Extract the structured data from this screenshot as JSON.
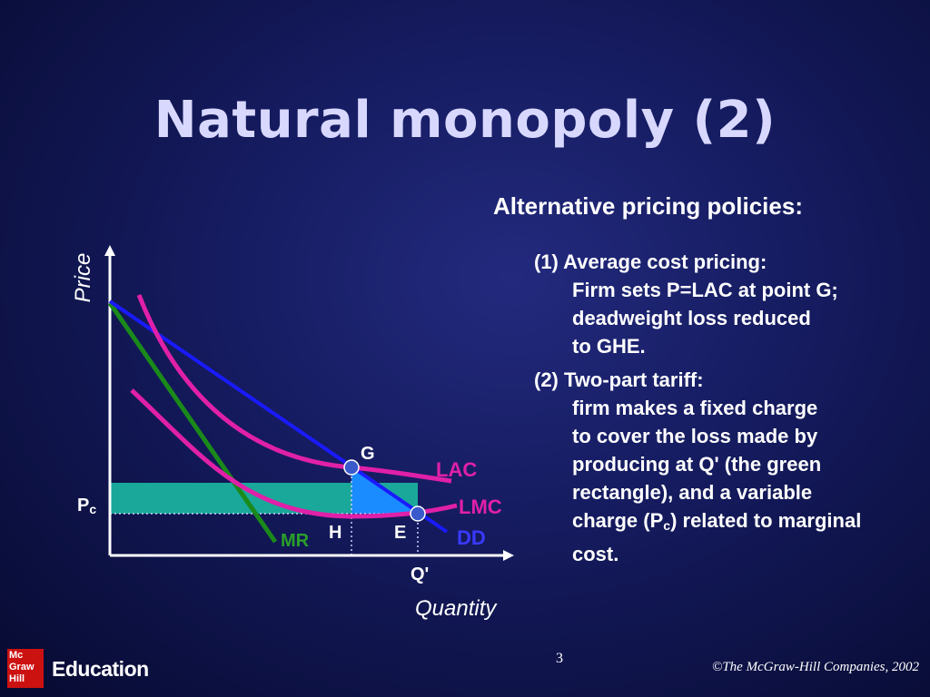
{
  "slide": {
    "title": "Natural monopoly (2)",
    "subtitle": "Alternative pricing policies:",
    "policy1": {
      "head": "(1) Average cost pricing:",
      "lines": [
        "Firm sets P=LAC at point G;",
        "deadweight loss reduced",
        "to GHE."
      ]
    },
    "policy2": {
      "head": "(2) Two-part tariff:",
      "lines": [
        "firm makes a fixed charge",
        "to cover the loss made by",
        "producing at Q' (the green",
        "rectangle), and a variable"
      ],
      "last_pre": "charge (P",
      "last_sub": "c",
      "last_post": ") related to marginal",
      "final": "cost."
    },
    "page_number": "3",
    "copyright": "©The McGraw-Hill Companies, 2002",
    "logo": {
      "box_lines": [
        "Mc",
        "Graw",
        "Hill"
      ],
      "text": "Education"
    }
  },
  "diagram": {
    "y_axis_label": "Price",
    "x_axis_label": "Quantity",
    "points": {
      "G": "G",
      "H": "H",
      "E": "E",
      "Qprime": "Q'",
      "Pc_main": "P",
      "Pc_sub": "c"
    },
    "curves": {
      "LAC": "LAC",
      "LMC": "LMC",
      "DD": "DD",
      "MR": "MR"
    },
    "colors": {
      "LAC": "#e020a8",
      "LMC": "#e020a8",
      "DD": "#1a1aff",
      "MR": "#1a8a1a",
      "fixed_charge_rect": "#1aa89a",
      "deadweight_triangle": "#1a8cff",
      "axes": "#ffffff",
      "DD_label": "#3a3aff",
      "MR_label": "#2aa02a",
      "LAC_label": "#e020a8"
    }
  }
}
